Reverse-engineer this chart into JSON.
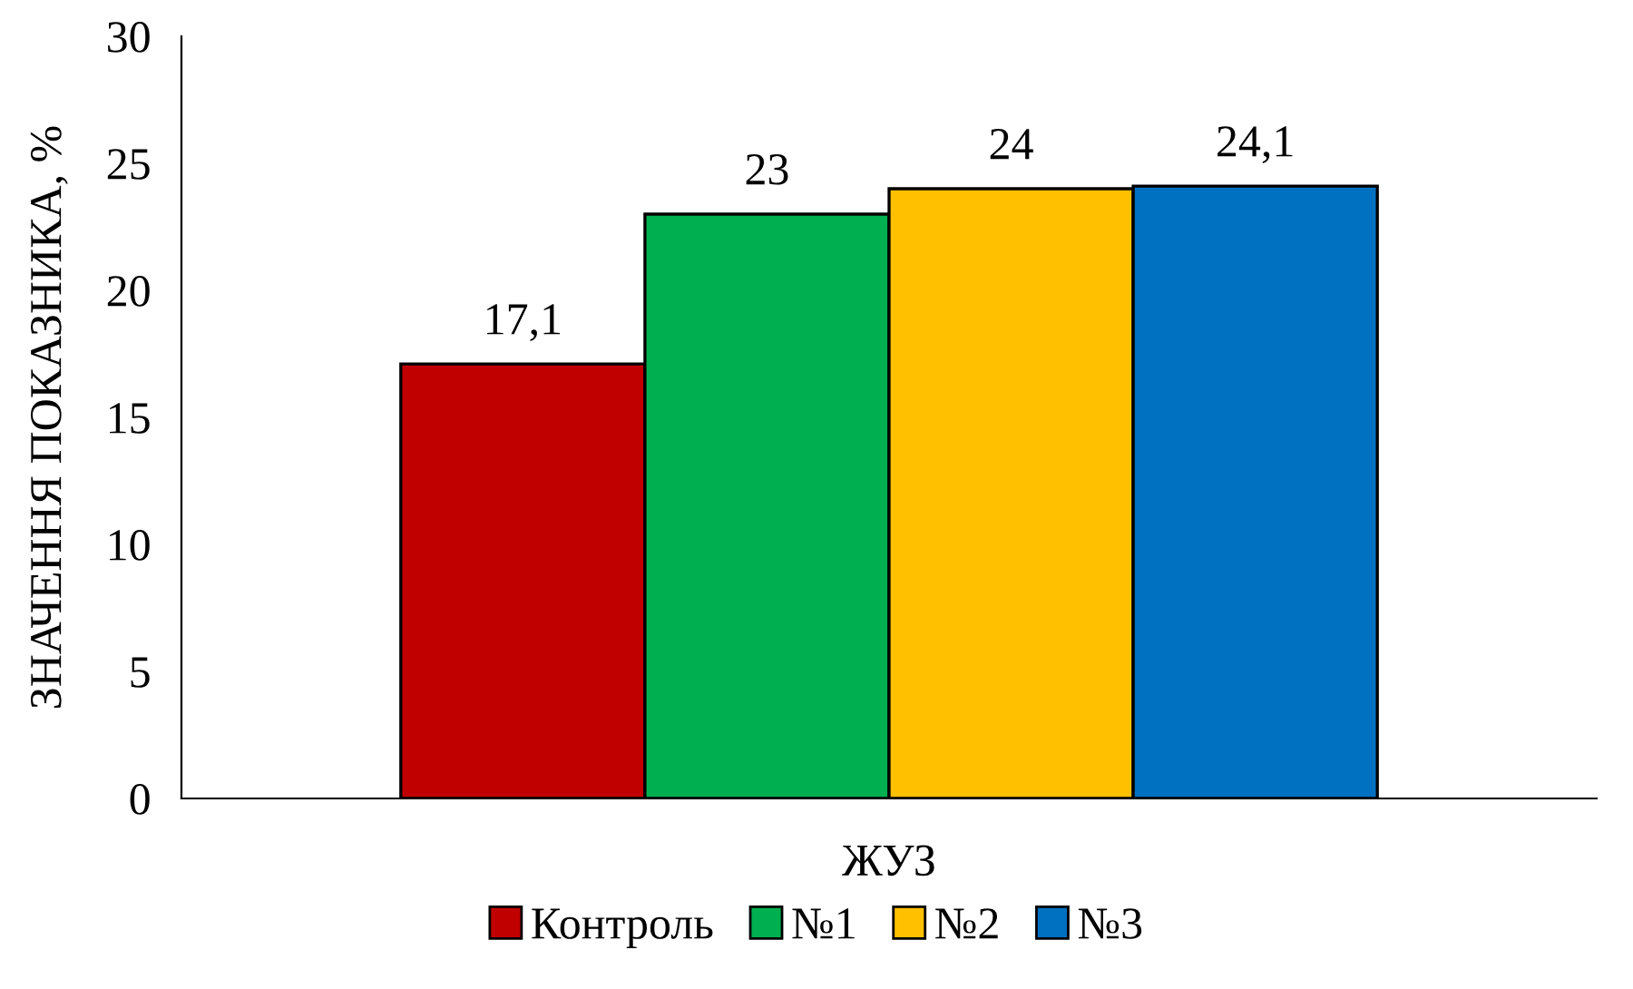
{
  "chart_data": {
    "type": "bar",
    "xlabel": null,
    "ylabel": "ЗНАЧЕННЯ ПОКАЗНИКА, %",
    "categories": [
      "ЖУЗ"
    ],
    "series": [
      {
        "name": "Контроль",
        "color": "#c00000",
        "values": [
          17.1
        ],
        "value_labels": [
          "17,1"
        ]
      },
      {
        "name": "№1",
        "color": "#00b050",
        "values": [
          23
        ],
        "value_labels": [
          "23"
        ]
      },
      {
        "name": "№2",
        "color": "#ffc000",
        "values": [
          24
        ],
        "value_labels": [
          "24"
        ]
      },
      {
        "name": "№3",
        "color": "#0070c0",
        "values": [
          24.1
        ],
        "value_labels": [
          "24,1"
        ]
      }
    ],
    "ylim": [
      0,
      30
    ],
    "yticks": [
      0,
      5,
      10,
      15,
      20,
      25,
      30
    ],
    "grid": false,
    "legend": "bottom"
  }
}
